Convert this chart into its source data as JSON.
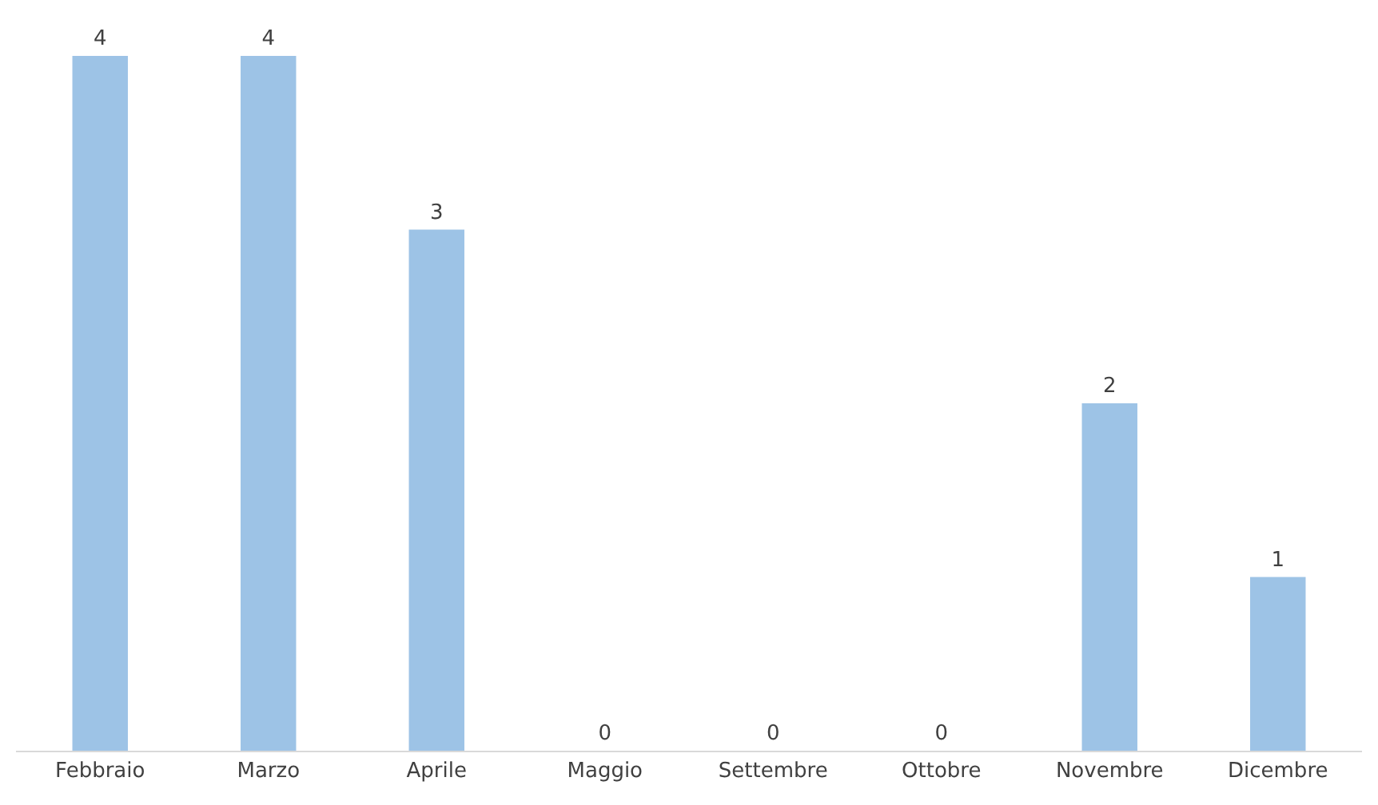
{
  "chart_data": {
    "type": "bar",
    "categories": [
      "Febbraio",
      "Marzo",
      "Aprile",
      "Maggio",
      "Settembre",
      "Ottobre",
      "Novembre",
      "Dicembre"
    ],
    "values": [
      4,
      4,
      3,
      0,
      0,
      0,
      2,
      1
    ],
    "color": "#9dc3e6",
    "data_labels": true
  }
}
